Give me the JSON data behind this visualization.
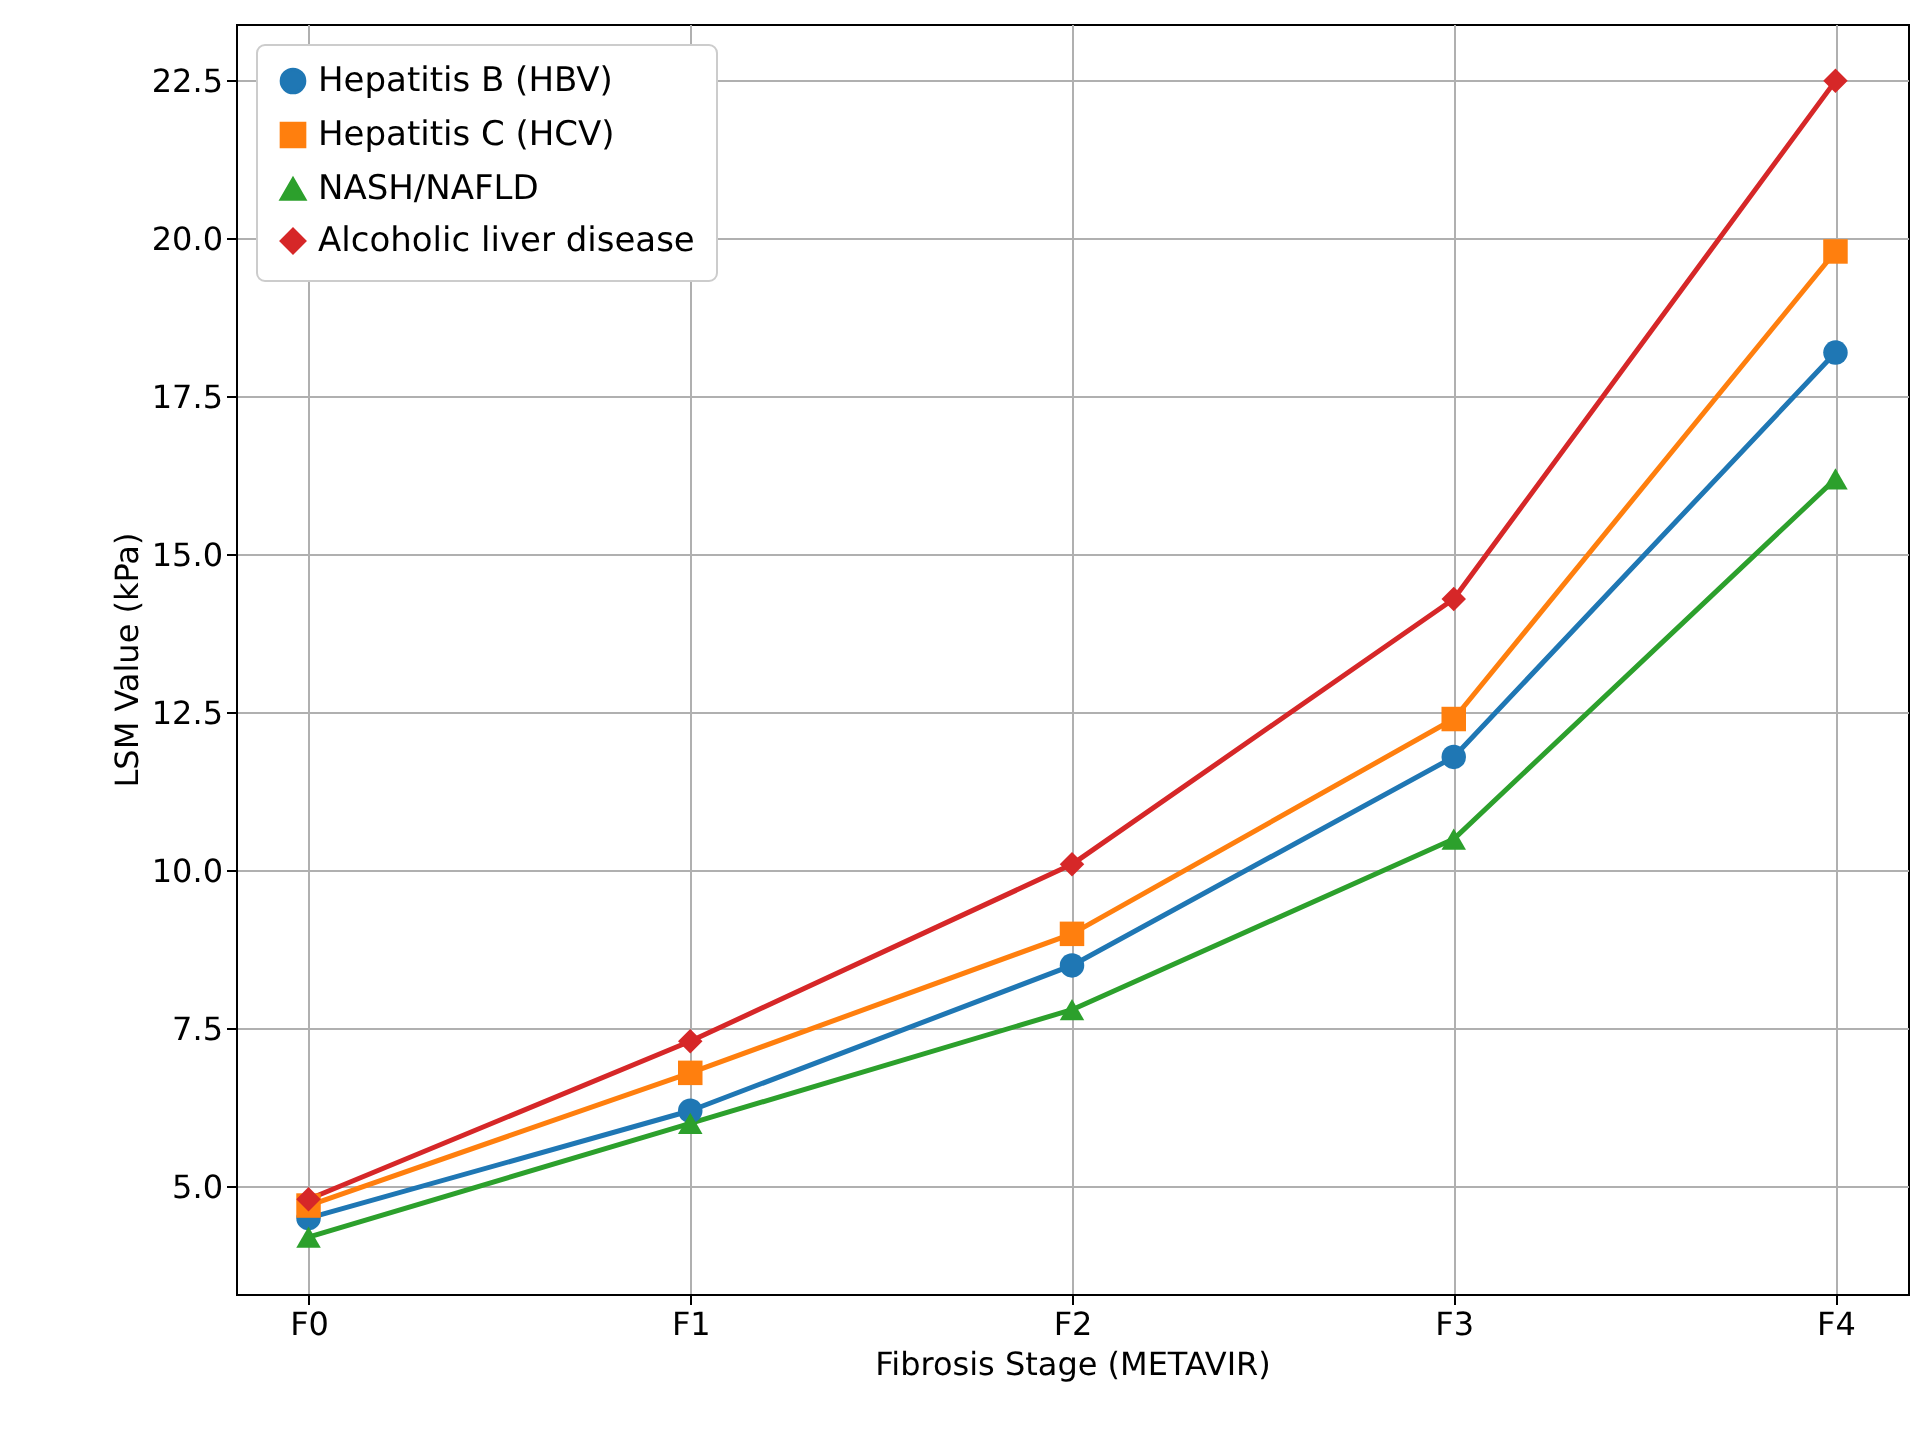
{
  "chart_data": {
    "type": "line",
    "xlabel": "Fibrosis Stage (METAVIR)",
    "ylabel": "LSM Value (kPa)",
    "categories": [
      "F0",
      "F1",
      "F2",
      "F3",
      "F4"
    ],
    "series": [
      {
        "name": "Hepatitis B (HBV)",
        "color": "#1f77b4",
        "marker": "circle",
        "values": [
          4.5,
          6.2,
          8.5,
          11.8,
          18.2
        ]
      },
      {
        "name": "Hepatitis C (HCV)",
        "color": "#ff7f0e",
        "marker": "square",
        "values": [
          4.7,
          6.8,
          9.0,
          12.4,
          19.8
        ]
      },
      {
        "name": "NASH/NAFLD",
        "color": "#2ca02c",
        "marker": "triangle",
        "values": [
          4.2,
          6.0,
          7.8,
          10.5,
          16.2
        ]
      },
      {
        "name": "Alcoholic liver disease",
        "color": "#d62728",
        "marker": "diamond",
        "values": [
          4.8,
          7.3,
          10.1,
          14.3,
          22.5
        ]
      }
    ],
    "ylim": [
      3.3,
      23.4
    ],
    "yticks": [
      {
        "value": 5,
        "label": "5.0"
      },
      {
        "value": 7.5,
        "label": "7.5"
      },
      {
        "value": 10,
        "label": "10.0"
      },
      {
        "value": 12.5,
        "label": "12.5"
      },
      {
        "value": 15,
        "label": "15.0"
      },
      {
        "value": 17.5,
        "label": "17.5"
      },
      {
        "value": 20,
        "label": "20.0"
      },
      {
        "value": 22.5,
        "label": "22.5"
      }
    ],
    "grid": true,
    "legend": "top left",
    "line_style": "solid"
  }
}
